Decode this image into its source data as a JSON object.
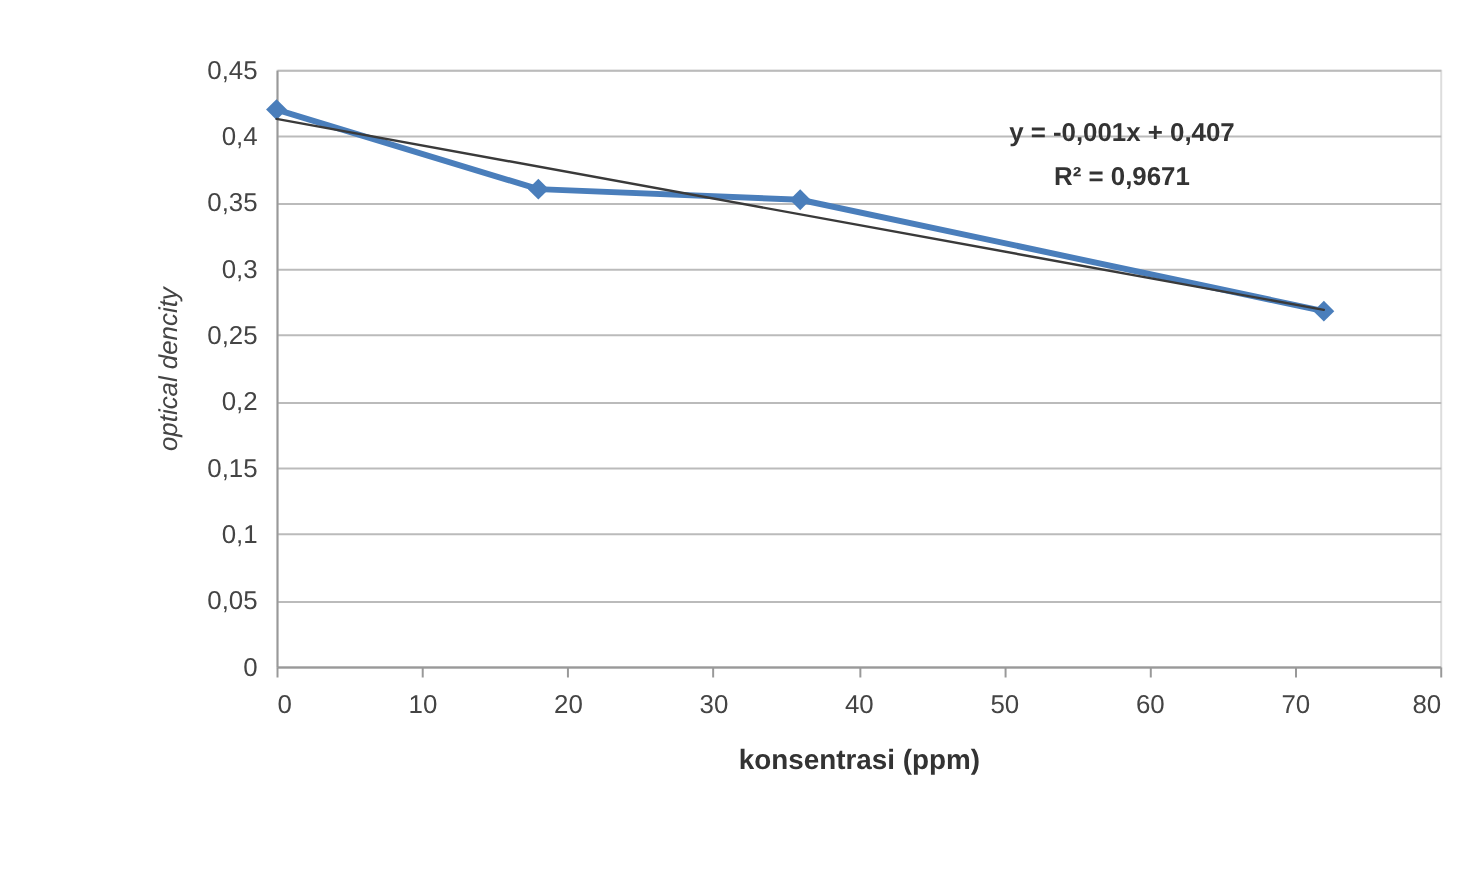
{
  "chart_data": {
    "type": "line",
    "xlabel": "konsentrasi (ppm)",
    "ylabel": "optical dencity",
    "xlim": [
      0,
      80
    ],
    "xticks": [
      0,
      10,
      20,
      30,
      40,
      50,
      60,
      70,
      80
    ],
    "ylim": [
      0,
      0.45
    ],
    "yticks": [
      0,
      {
        "value": 0.05,
        "label": "0,05"
      },
      {
        "value": 0.1,
        "label": "0,1"
      },
      {
        "value": 0.15,
        "label": "0,15"
      },
      {
        "value": 0.2,
        "label": "0,2"
      },
      {
        "value": 0.25,
        "label": "0,25"
      },
      {
        "value": 0.3,
        "label": "0,3"
      },
      {
        "value": 0.35,
        "label": "0,35"
      },
      {
        "value": 0.4,
        "label": "0,4"
      },
      {
        "value": 0.45,
        "label": "0,45"
      }
    ],
    "grid": "y",
    "legend": false,
    "series": [
      {
        "type": "line",
        "color": "#4a7ebb",
        "marker": "diamond",
        "x": [
          0,
          18,
          36,
          72
        ],
        "values": [
          0.42,
          0.36,
          0.352,
          0.268
        ]
      },
      {
        "type": "line",
        "color": "#3a3a3a",
        "marker": "none",
        "x": [
          0,
          72
        ],
        "values": [
          0.413,
          0.269
        ]
      }
    ],
    "annotations": [
      "y = -0,001x + 0,407",
      "R² = 0,9671"
    ]
  }
}
